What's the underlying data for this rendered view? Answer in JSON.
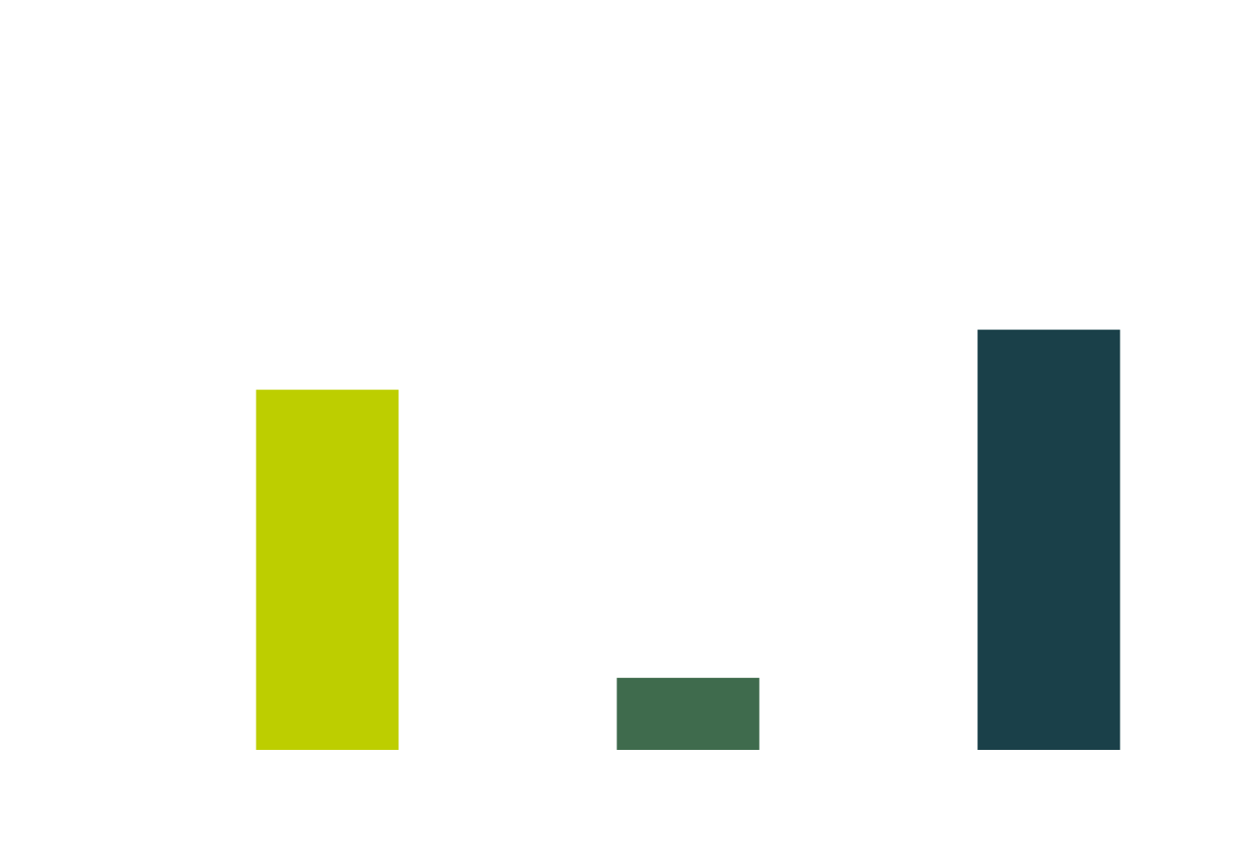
{
  "chart_data": {
    "type": "bar",
    "categories": [
      "",
      "",
      ""
    ],
    "values": [
      60,
      12,
      70
    ],
    "colors": [
      "#bdce00",
      "#3f6b4d",
      "#1a4049"
    ],
    "ylim": [
      0,
      100
    ],
    "title": "",
    "xlabel": "",
    "ylabel": "",
    "grid": false,
    "axes_visible": false
  }
}
